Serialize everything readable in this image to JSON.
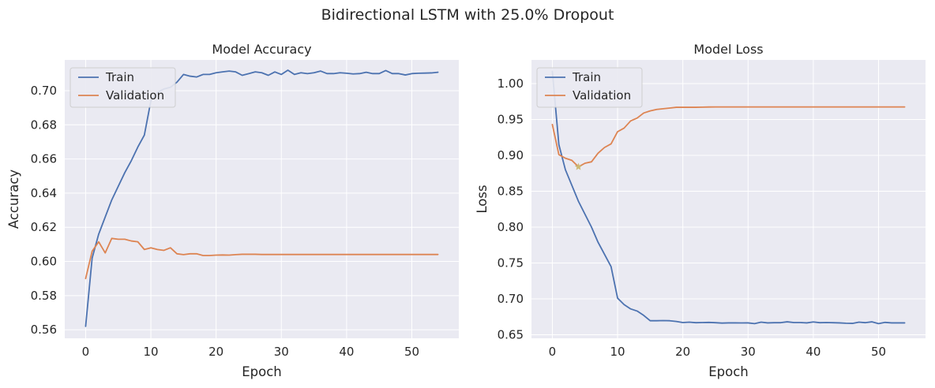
{
  "figure": {
    "title": "Bidirectional LSTM with 25.0% Dropout"
  },
  "colors": {
    "train": "#4c72b0",
    "validation": "#dd8452",
    "background": "#eaeaf2",
    "grid": "#ffffff",
    "marker": "#ccb974"
  },
  "chart_data": [
    {
      "type": "line",
      "title": "Model Accuracy",
      "xlabel": "Epoch",
      "ylabel": "Accuracy",
      "xlim": [
        -3.2,
        57.2
      ],
      "ylim": [
        0.555,
        0.718
      ],
      "xticks": [
        0,
        10,
        20,
        30,
        40,
        50
      ],
      "yticks": [
        0.56,
        0.58,
        0.6,
        0.62,
        0.64,
        0.66,
        0.68,
        0.7
      ],
      "ytick_labels": [
        "0.56",
        "0.58",
        "0.60",
        "0.62",
        "0.64",
        "0.66",
        "0.68",
        "0.70"
      ],
      "grid": true,
      "legend_position": "upper-left",
      "series": [
        {
          "name": "Train",
          "color": "#4c72b0",
          "values": [
            0.562,
            0.602,
            0.616,
            0.626,
            0.636,
            0.644,
            0.652,
            0.659,
            0.667,
            0.674,
            0.694,
            0.699,
            0.701,
            0.702,
            0.705,
            0.7095,
            0.7085,
            0.708,
            0.7095,
            0.7095,
            0.7105,
            0.711,
            0.7115,
            0.711,
            0.709,
            0.71,
            0.711,
            0.7105,
            0.709,
            0.711,
            0.7095,
            0.712,
            0.7095,
            0.7105,
            0.71,
            0.7105,
            0.7115,
            0.71,
            0.71,
            0.7105,
            0.7102,
            0.7098,
            0.71,
            0.7108,
            0.71,
            0.71,
            0.7118,
            0.71,
            0.71,
            0.7092,
            0.71,
            0.7102,
            0.7103,
            0.7104,
            0.7108
          ]
        },
        {
          "name": "Validation",
          "color": "#dd8452",
          "values": [
            0.59,
            0.606,
            0.6115,
            0.605,
            0.6135,
            0.613,
            0.613,
            0.612,
            0.6115,
            0.607,
            0.608,
            0.607,
            0.6065,
            0.608,
            0.6045,
            0.604,
            0.6045,
            0.6045,
            0.6035,
            0.6035,
            0.6037,
            0.6038,
            0.6037,
            0.604,
            0.6042,
            0.6042,
            0.6042,
            0.6041,
            0.6041,
            0.6041,
            0.6041,
            0.6041,
            0.6041,
            0.6041,
            0.6041,
            0.6041,
            0.6041,
            0.6041,
            0.6041,
            0.6041,
            0.6041,
            0.6041,
            0.6041,
            0.6041,
            0.6041,
            0.6041,
            0.6041,
            0.6041,
            0.6041,
            0.6041,
            0.6041,
            0.6041,
            0.6041,
            0.6041,
            0.6041
          ]
        }
      ]
    },
    {
      "type": "line",
      "title": "Model Loss",
      "xlabel": "Epoch",
      "ylabel": "Loss",
      "xlim": [
        -3.2,
        57.2
      ],
      "ylim": [
        0.645,
        1.033
      ],
      "xticks": [
        0,
        10,
        20,
        30,
        40,
        50
      ],
      "yticks": [
        0.65,
        0.7,
        0.75,
        0.8,
        0.85,
        0.9,
        0.95,
        1.0
      ],
      "ytick_labels": [
        "0.65",
        "0.70",
        "0.75",
        "0.80",
        "0.85",
        "0.90",
        "0.95",
        "1.00"
      ],
      "grid": true,
      "legend_position": "upper-left",
      "series": [
        {
          "name": "Train",
          "color": "#4c72b0",
          "values": [
            1.017,
            0.915,
            0.88,
            0.858,
            0.836,
            0.818,
            0.8,
            0.779,
            0.762,
            0.745,
            0.701,
            0.692,
            0.686,
            0.683,
            0.677,
            0.6695,
            0.6695,
            0.6697,
            0.6695,
            0.6685,
            0.667,
            0.6675,
            0.6668,
            0.667,
            0.6672,
            0.6668,
            0.6662,
            0.6665,
            0.6665,
            0.6664,
            0.6665,
            0.6655,
            0.6675,
            0.6665,
            0.6668,
            0.6668,
            0.668,
            0.667,
            0.667,
            0.6665,
            0.6678,
            0.6668,
            0.667,
            0.6668,
            0.6665,
            0.666,
            0.6658,
            0.6675,
            0.6668,
            0.668,
            0.6655,
            0.6672,
            0.6665,
            0.6665,
            0.6665
          ]
        },
        {
          "name": "Validation",
          "color": "#dd8452",
          "values": [
            0.943,
            0.901,
            0.896,
            0.893,
            0.884,
            0.889,
            0.891,
            0.903,
            0.911,
            0.916,
            0.933,
            0.938,
            0.948,
            0.952,
            0.959,
            0.962,
            0.964,
            0.965,
            0.966,
            0.967,
            0.967,
            0.967,
            0.967,
            0.9672,
            0.9674,
            0.9675,
            0.9675,
            0.9675,
            0.9675,
            0.9675,
            0.9675,
            0.9675,
            0.9675,
            0.9675,
            0.9675,
            0.9675,
            0.9675,
            0.9675,
            0.9675,
            0.9675,
            0.9675,
            0.9675,
            0.9675,
            0.9675,
            0.9675,
            0.9675,
            0.9675,
            0.9675,
            0.9675,
            0.9675,
            0.9675,
            0.9675,
            0.9675,
            0.9675,
            0.9675
          ]
        }
      ],
      "marker": {
        "x": 4,
        "y": 0.884,
        "shape": "star",
        "color": "#ccb974"
      }
    }
  ]
}
